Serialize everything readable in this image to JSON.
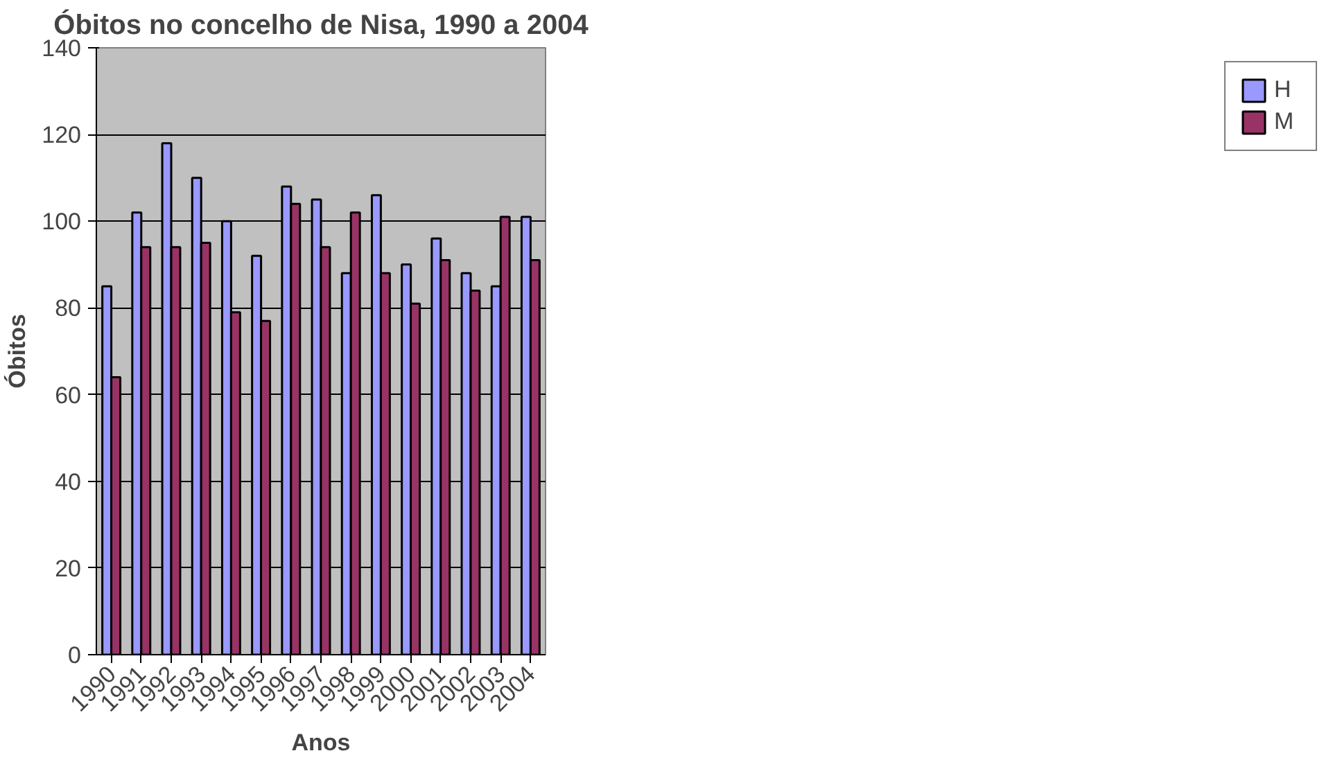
{
  "chart_data": {
    "type": "bar",
    "title": "Óbitos no concelho de Nisa, 1990 a 2004",
    "xlabel": "Anos",
    "ylabel": "Óbitos",
    "categories": [
      "1990",
      "1991",
      "1992",
      "1993",
      "1994",
      "1995",
      "1996",
      "1997",
      "1998",
      "1999",
      "2000",
      "2001",
      "2002",
      "2003",
      "2004"
    ],
    "series": [
      {
        "name": "H",
        "color": "#9999ff",
        "values": [
          85,
          102,
          118,
          110,
          100,
          92,
          108,
          105,
          88,
          106,
          90,
          96,
          88,
          85,
          101
        ]
      },
      {
        "name": "M",
        "color": "#993366",
        "values": [
          64,
          94,
          94,
          95,
          79,
          77,
          104,
          94,
          102,
          88,
          81,
          91,
          84,
          101,
          91
        ]
      }
    ],
    "ylim": [
      0,
      140
    ],
    "yticks": [
      0,
      20,
      40,
      60,
      80,
      100,
      120,
      140
    ],
    "grid": "y",
    "legend": "right"
  }
}
